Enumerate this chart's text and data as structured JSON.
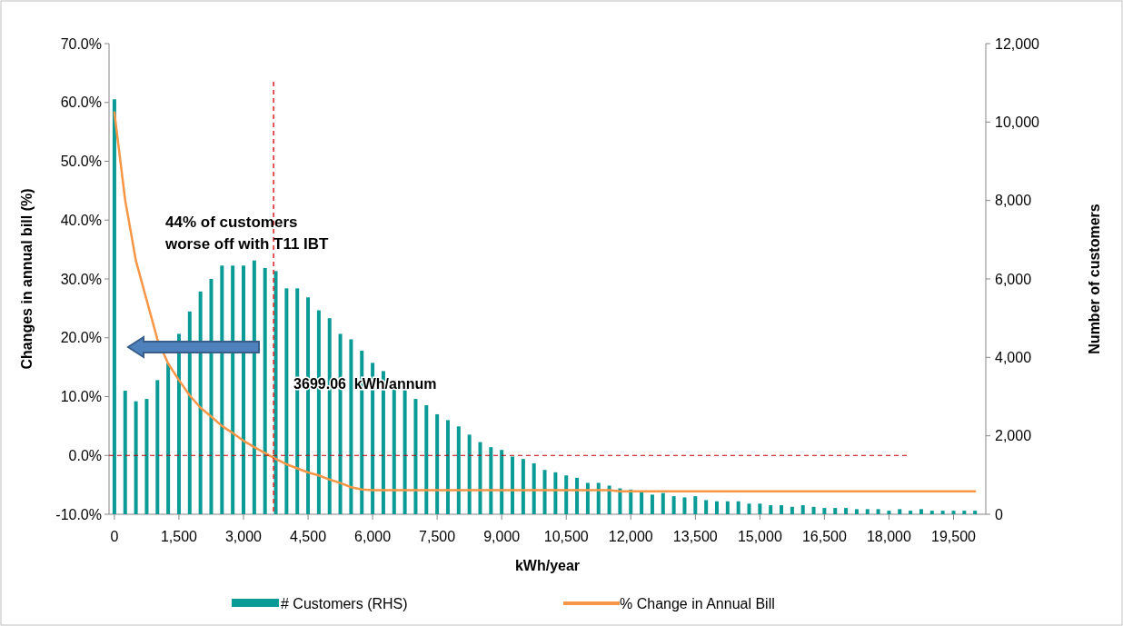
{
  "chart_data": {
    "type": "bar",
    "xlabel": "kWh/year",
    "ylabel": "Changes in annual bill (%)",
    "y2label": "Number of customers",
    "x": [
      0,
      250,
      500,
      750,
      1000,
      1250,
      1500,
      1750,
      2000,
      2250,
      2500,
      2750,
      3000,
      3250,
      3500,
      3750,
      4000,
      4250,
      4500,
      4750,
      5000,
      5250,
      5500,
      5750,
      6000,
      6250,
      6500,
      6750,
      7000,
      7250,
      7500,
      7750,
      8000,
      8250,
      8500,
      8750,
      9000,
      9250,
      9500,
      9750,
      10000,
      10250,
      10500,
      10750,
      11000,
      11250,
      11500,
      11750,
      12000,
      12250,
      12500,
      12750,
      13000,
      13250,
      13500,
      13750,
      14000,
      14250,
      14500,
      14750,
      15000,
      15250,
      15500,
      15750,
      16000,
      16250,
      16500,
      16750,
      17000,
      17250,
      17500,
      17750,
      18000,
      18250,
      18500,
      18750,
      19000,
      19250,
      19500,
      19750,
      20000
    ],
    "series": [
      {
        "name": "# Customers (RHS)",
        "axis": "y2",
        "color": "#0a9b96",
        "values": [
          10580,
          3150,
          2880,
          2940,
          3420,
          3850,
          4600,
          5170,
          5680,
          6000,
          6340,
          6340,
          6340,
          6470,
          6280,
          6200,
          5760,
          5760,
          5530,
          5200,
          5000,
          4600,
          4460,
          4170,
          3860,
          3650,
          3420,
          3170,
          2940,
          2780,
          2550,
          2400,
          2240,
          2030,
          1840,
          1710,
          1640,
          1470,
          1410,
          1300,
          1130,
          1070,
          990,
          930,
          800,
          800,
          730,
          660,
          630,
          560,
          500,
          540,
          460,
          430,
          460,
          360,
          330,
          330,
          330,
          270,
          270,
          230,
          230,
          190,
          230,
          190,
          160,
          160,
          160,
          130,
          130,
          130,
          90,
          130,
          90,
          130,
          90,
          90,
          90,
          90,
          90
        ]
      },
      {
        "name": "% Change in Annual Bill",
        "type": "line",
        "color": "#f79646",
        "values": [
          58.3,
          43.4,
          33.1,
          26.4,
          19.7,
          15.6,
          12.8,
          10.2,
          8.1,
          6.6,
          5.0,
          3.8,
          2.5,
          1.4,
          0.4,
          -0.6,
          -1.5,
          -2.2,
          -2.9,
          -3.4,
          -4.1,
          -4.7,
          -5.4,
          -5.8,
          -5.9,
          -5.9,
          -5.9,
          -5.9,
          -5.9,
          -5.9,
          -5.9,
          -5.9,
          -5.9,
          -5.9,
          -5.9,
          -5.9,
          -5.9,
          -5.9,
          -5.9,
          -5.9,
          -5.9,
          -5.9,
          -5.9,
          -5.9,
          -5.9,
          -5.9,
          -5.9,
          -6.1,
          -6.1,
          -6.1,
          -6.1,
          -6.1,
          -6.1,
          -6.1,
          -6.1,
          -6.1,
          -6.1,
          -6.1,
          -6.1,
          -6.1,
          -6.1,
          -6.1,
          -6.1,
          -6.1,
          -6.1,
          -6.1,
          -6.1,
          -6.1,
          -6.1,
          -6.1,
          -6.1,
          -6.1,
          -6.1,
          -6.1,
          -6.1,
          -6.1,
          -6.1,
          -6.1,
          -6.1,
          -6.1,
          -6.1
        ]
      }
    ],
    "xlim": [
      -125,
      20250
    ],
    "xticks": [
      0,
      {
        "value": 1500,
        "label": "1,500"
      },
      {
        "value": 3000,
        "label": "3,000"
      },
      {
        "value": 4500,
        "label": "4,500"
      },
      {
        "value": 6000,
        "label": "6,000"
      },
      {
        "value": 7500,
        "label": "7,500"
      },
      {
        "value": 9000,
        "label": "9,000"
      },
      {
        "value": 10500,
        "label": "10,500"
      },
      {
        "value": 12000,
        "label": "12,000"
      },
      {
        "value": 13500,
        "label": "13,500"
      },
      {
        "value": 15000,
        "label": "15,000"
      },
      {
        "value": 16500,
        "label": "16,500"
      },
      {
        "value": 18000,
        "label": "18,000"
      },
      {
        "value": 19500,
        "label": "19,500"
      }
    ],
    "ylim": [
      -10,
      70
    ],
    "yticks": [
      {
        "value": -10,
        "label": "-10.0%"
      },
      {
        "value": 0,
        "label": "0.0%"
      },
      {
        "value": 10,
        "label": "10.0%"
      },
      {
        "value": 20,
        "label": "20.0%"
      },
      {
        "value": 30,
        "label": "30.0%"
      },
      {
        "value": 40,
        "label": "40.0%"
      },
      {
        "value": 50,
        "label": "50.0%"
      },
      {
        "value": 60,
        "label": "60.0%"
      },
      {
        "value": 70,
        "label": "70.0%"
      }
    ],
    "y2lim": [
      0,
      12000
    ],
    "y2ticks": [
      0,
      {
        "value": 2000,
        "label": "2,000"
      },
      {
        "value": 4000,
        "label": "4,000"
      },
      {
        "value": 6000,
        "label": "6,000"
      },
      {
        "value": 8000,
        "label": "8,000"
      },
      {
        "value": 10000,
        "label": "10,000"
      },
      {
        "value": 12000,
        "label": "12,000"
      }
    ],
    "ref_lines": [
      {
        "axis": "x",
        "value": 3699.06,
        "label": "3699.06  kWh/annum",
        "color": "#e02020",
        "line_style": "dashed"
      },
      {
        "axis": "y",
        "value": 0,
        "color": "#c00000",
        "line_style": "dashed"
      }
    ],
    "annotations": [
      "44% of customers worse off with T11 IBT"
    ],
    "legend": "bottom",
    "grid": false
  }
}
